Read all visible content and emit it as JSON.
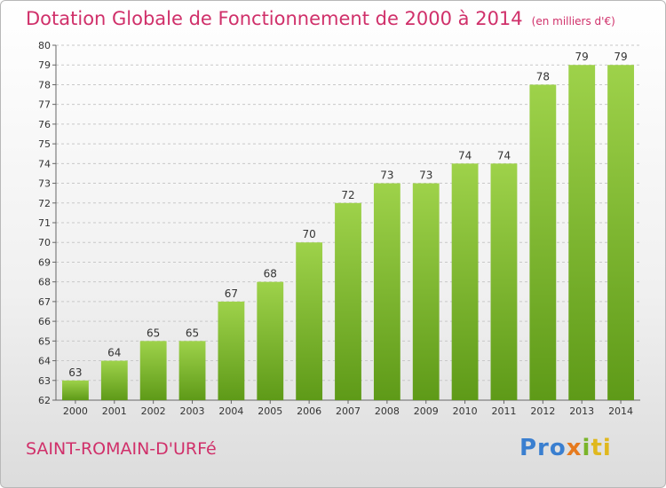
{
  "chart_data": {
    "type": "bar",
    "title": "Dotation Globale de Fonctionnement de 2000 à 2014",
    "unit": "(en milliers d'€)",
    "categories": [
      "2000",
      "2001",
      "2002",
      "2003",
      "2004",
      "2005",
      "2006",
      "2007",
      "2008",
      "2009",
      "2010",
      "2011",
      "2012",
      "2013",
      "2014"
    ],
    "values": [
      63,
      64,
      65,
      65,
      67,
      68,
      70,
      72,
      73,
      73,
      74,
      74,
      78,
      79,
      79
    ],
    "ylim": [
      62,
      80
    ],
    "yticks": [
      62,
      63,
      64,
      65,
      66,
      67,
      68,
      69,
      70,
      71,
      72,
      73,
      74,
      75,
      76,
      77,
      78,
      79,
      80
    ],
    "grid": true,
    "bar_color": "#7ab42a"
  },
  "commune": "SAINT-ROMAIN-D'URFé",
  "brand": {
    "logo_text": "Proxiti",
    "parts": [
      "Pro",
      "x",
      "i",
      "ti"
    ]
  }
}
